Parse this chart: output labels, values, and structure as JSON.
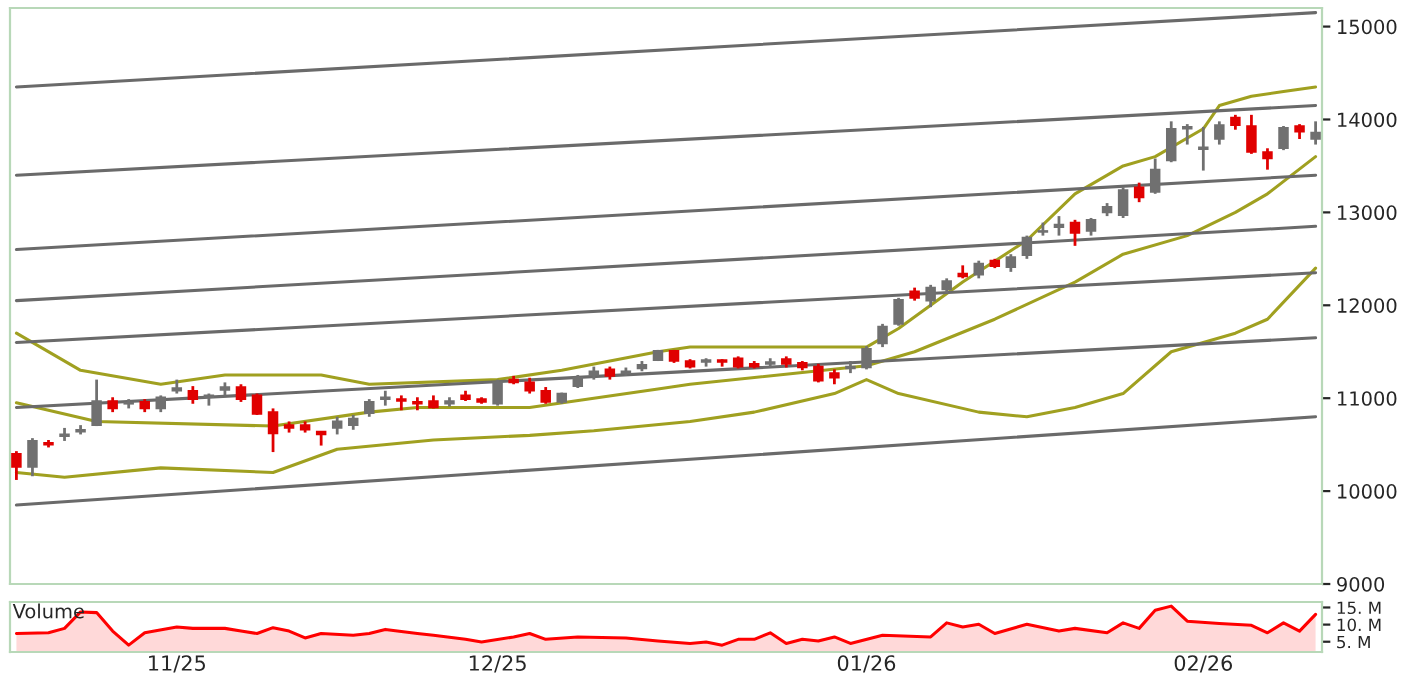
{
  "chart_data": [
    {
      "type": "candlestick",
      "categories": [
        null,
        null,
        null,
        null,
        null,
        null,
        null,
        null,
        null,
        null,
        null,
        null,
        null,
        null,
        null,
        null,
        null,
        null,
        null,
        null,
        null,
        null,
        null,
        null,
        null,
        null,
        null,
        null,
        null,
        null,
        null,
        null,
        null,
        null,
        null,
        null,
        null,
        null,
        null,
        null,
        null,
        null,
        null,
        null,
        null,
        null,
        null,
        null,
        null,
        null,
        null,
        null,
        null,
        null,
        null,
        null,
        null,
        null,
        null,
        null,
        null,
        null,
        null,
        null,
        null,
        null,
        null,
        null,
        null,
        null,
        null,
        null,
        null,
        null,
        null,
        null,
        null,
        null,
        null,
        null,
        null,
        null
      ],
      "ohlc": [
        [
          10400,
          10430,
          10120,
          10260
        ],
        [
          10260,
          10570,
          10160,
          10540
        ],
        [
          10520,
          10550,
          10470,
          10500
        ],
        [
          10590,
          10680,
          10540,
          10610
        ],
        [
          10640,
          10710,
          10610,
          10660
        ],
        [
          10710,
          11200,
          10700,
          10970
        ],
        [
          10970,
          11010,
          10850,
          10890
        ],
        [
          10940,
          10990,
          10890,
          10950
        ],
        [
          10960,
          10990,
          10850,
          10890
        ],
        [
          10890,
          11030,
          10850,
          11010
        ],
        [
          11080,
          11200,
          11050,
          11110
        ],
        [
          11080,
          11130,
          10940,
          10990
        ],
        [
          11010,
          11050,
          10920,
          11030
        ],
        [
          11090,
          11170,
          11030,
          11120
        ],
        [
          11120,
          11150,
          10960,
          10990
        ],
        [
          11030,
          11050,
          10820,
          10830
        ],
        [
          10850,
          10890,
          10420,
          10620
        ],
        [
          10710,
          10750,
          10630,
          10680
        ],
        [
          10710,
          10750,
          10630,
          10660
        ],
        [
          10640,
          10640,
          10490,
          10610
        ],
        [
          10680,
          10800,
          10610,
          10750
        ],
        [
          10710,
          10820,
          10660,
          10780
        ],
        [
          10840,
          10990,
          10800,
          10960
        ],
        [
          10990,
          11080,
          10920,
          11010
        ],
        [
          10990,
          11030,
          10870,
          10970
        ],
        [
          10960,
          11010,
          10870,
          10940
        ],
        [
          10970,
          11030,
          10890,
          10900
        ],
        [
          10940,
          11010,
          10910,
          10970
        ],
        [
          11030,
          11080,
          10970,
          10990
        ],
        [
          10990,
          11010,
          10940,
          10960
        ],
        [
          10940,
          11200,
          10920,
          11170
        ],
        [
          11200,
          11240,
          11150,
          11170
        ],
        [
          11170,
          11220,
          11050,
          11080
        ],
        [
          11080,
          11120,
          10940,
          10960
        ],
        [
          10960,
          11060,
          10940,
          11050
        ],
        [
          11130,
          11250,
          11110,
          11220
        ],
        [
          11250,
          11340,
          11200,
          11290
        ],
        [
          11310,
          11340,
          11200,
          11240
        ],
        [
          11270,
          11330,
          11240,
          11290
        ],
        [
          11320,
          11400,
          11290,
          11360
        ],
        [
          11410,
          11520,
          11400,
          11510
        ],
        [
          11510,
          11520,
          11380,
          11400
        ],
        [
          11400,
          11420,
          11320,
          11340
        ],
        [
          11390,
          11430,
          11340,
          11410
        ],
        [
          11410,
          11420,
          11340,
          11390
        ],
        [
          11430,
          11450,
          11320,
          11340
        ],
        [
          11370,
          11400,
          11320,
          11340
        ],
        [
          11370,
          11430,
          11340,
          11390
        ],
        [
          11420,
          11450,
          11330,
          11370
        ],
        [
          11380,
          11400,
          11300,
          11330
        ],
        [
          11340,
          11370,
          11170,
          11190
        ],
        [
          11270,
          11310,
          11150,
          11220
        ],
        [
          11320,
          11400,
          11270,
          11340
        ],
        [
          11330,
          11560,
          11310,
          11530
        ],
        [
          11590,
          11800,
          11550,
          11770
        ],
        [
          11800,
          12080,
          11780,
          12060
        ],
        [
          12150,
          12190,
          12050,
          12080
        ],
        [
          12050,
          12220,
          11980,
          12190
        ],
        [
          12170,
          12290,
          12130,
          12260
        ],
        [
          12340,
          12430,
          12290,
          12310
        ],
        [
          12330,
          12480,
          12290,
          12450
        ],
        [
          12480,
          12500,
          12400,
          12420
        ],
        [
          12410,
          12550,
          12360,
          12520
        ],
        [
          12540,
          12750,
          12500,
          12730
        ],
        [
          12790,
          12890,
          12750,
          12800
        ],
        [
          12840,
          12960,
          12750,
          12870
        ],
        [
          12890,
          12920,
          12640,
          12780
        ],
        [
          12800,
          12940,
          12750,
          12920
        ],
        [
          13000,
          13100,
          12960,
          13060
        ],
        [
          12970,
          13270,
          12940,
          13240
        ],
        [
          13270,
          13320,
          13110,
          13160
        ],
        [
          13220,
          13580,
          13200,
          13460
        ],
        [
          13560,
          13980,
          13540,
          13900
        ],
        [
          13900,
          13950,
          13730,
          13920
        ],
        [
          13680,
          13920,
          13450,
          13700
        ],
        [
          13790,
          13980,
          13730,
          13940
        ],
        [
          14020,
          14050,
          13890,
          13940
        ],
        [
          13930,
          14050,
          13630,
          13650
        ],
        [
          13650,
          13690,
          13460,
          13580
        ],
        [
          13690,
          13930,
          13670,
          13910
        ],
        [
          13930,
          13950,
          13790,
          13870
        ],
        [
          13790,
          13980,
          13730,
          13860
        ]
      ],
      "colors": [
        "#e00000",
        "#707070",
        "#e00000",
        "#707070",
        "#707070",
        "#707070",
        "#e00000",
        "#707070",
        "#e00000",
        "#707070",
        "#707070",
        "#e00000",
        "#707070",
        "#707070",
        "#e00000",
        "#e00000",
        "#e00000",
        "#e00000",
        "#e00000",
        "#e00000",
        "#707070",
        "#707070",
        "#707070",
        "#707070",
        "#e00000",
        "#e00000",
        "#e00000",
        "#707070",
        "#e00000",
        "#e00000",
        "#707070",
        "#e00000",
        "#e00000",
        "#e00000",
        "#707070",
        "#707070",
        "#707070",
        "#e00000",
        "#707070",
        "#707070",
        "#707070",
        "#e00000",
        "#e00000",
        "#707070",
        "#e00000",
        "#e00000",
        "#e00000",
        "#707070",
        "#e00000",
        "#e00000",
        "#e00000",
        "#e00000",
        "#707070",
        "#707070",
        "#707070",
        "#707070",
        "#e00000",
        "#707070",
        "#707070",
        "#e00000",
        "#707070",
        "#e00000",
        "#707070",
        "#707070",
        "#707070",
        "#707070",
        "#e00000",
        "#707070",
        "#707070",
        "#707070",
        "#e00000",
        "#707070",
        "#707070",
        "#707070",
        "#707070",
        "#707070",
        "#e00000",
        "#e00000",
        "#e00000",
        "#707070",
        "#e00000",
        "#707070"
      ],
      "series": [
        {
          "type": "line",
          "color": "#a0a020",
          "values": [
            11700,
            null,
            null,
            null,
            11300,
            null,
            null,
            null,
            null,
            11150,
            null,
            null,
            null,
            11250,
            null,
            null,
            null,
            null,
            null,
            11250,
            null,
            null,
            11150,
            null,
            null,
            null,
            null,
            null,
            null,
            null,
            11200,
            null,
            null,
            null,
            11300,
            null,
            null,
            null,
            null,
            null,
            11500,
            null,
            11550,
            null,
            null,
            null,
            11550,
            null,
            null,
            null,
            null,
            null,
            null,
            11550,
            null,
            11750,
            null,
            null,
            null,
            12250,
            null,
            null,
            null,
            12700,
            null,
            null,
            13200,
            null,
            null,
            13500,
            null,
            13600,
            null,
            null,
            13900,
            14150,
            null,
            14250,
            null,
            14300,
            null,
            14350
          ]
        },
        {
          "type": "line",
          "color": "#a0a020",
          "values": [
            10950,
            null,
            null,
            null,
            null,
            10750,
            null,
            null,
            null,
            null,
            null,
            null,
            null,
            null,
            null,
            null,
            10700,
            null,
            null,
            null,
            null,
            null,
            10850,
            null,
            null,
            10900,
            null,
            null,
            null,
            null,
            null,
            null,
            10900,
            null,
            null,
            null,
            null,
            null,
            null,
            null,
            11100,
            null,
            11150,
            null,
            null,
            null,
            null,
            null,
            null,
            null,
            null,
            null,
            null,
            11350,
            null,
            null,
            11500,
            null,
            null,
            null,
            null,
            11850,
            null,
            null,
            null,
            null,
            12250,
            null,
            null,
            12550,
            null,
            null,
            null,
            12750,
            null,
            null,
            13000,
            null,
            13200,
            null,
            null,
            13600
          ]
        },
        {
          "type": "line",
          "color": "#a0a020",
          "values": [
            10200,
            null,
            null,
            10150,
            null,
            null,
            null,
            null,
            null,
            10250,
            null,
            null,
            null,
            null,
            null,
            null,
            10200,
            null,
            null,
            null,
            10450,
            null,
            null,
            null,
            null,
            null,
            10550,
            null,
            null,
            null,
            null,
            null,
            10600,
            null,
            null,
            null,
            10650,
            null,
            null,
            null,
            null,
            null,
            10750,
            null,
            null,
            null,
            10850,
            null,
            null,
            null,
            null,
            11050,
            null,
            11200,
            null,
            11050,
            null,
            null,
            null,
            null,
            10850,
            null,
            null,
            10800,
            null,
            null,
            10900,
            null,
            null,
            11050,
            null,
            null,
            11500,
            null,
            null,
            null,
            11700,
            null,
            11850,
            null,
            null,
            12400
          ]
        },
        {
          "type": "line",
          "color": "#6a6a6a",
          "values": [
            14350,
            null,
            null,
            null,
            null,
            null,
            null,
            null,
            null,
            null,
            null,
            null,
            null,
            null,
            null,
            null,
            null,
            null,
            null,
            null,
            null,
            null,
            null,
            null,
            null,
            null,
            null,
            null,
            null,
            null,
            null,
            null,
            null,
            null,
            null,
            null,
            null,
            null,
            null,
            null,
            null,
            null,
            null,
            null,
            null,
            null,
            null,
            null,
            null,
            null,
            null,
            null,
            null,
            null,
            null,
            null,
            null,
            null,
            null,
            null,
            null,
            null,
            null,
            null,
            null,
            null,
            null,
            null,
            null,
            null,
            null,
            null,
            null,
            null,
            null,
            null,
            null,
            null,
            null,
            null,
            null,
            15150
          ]
        },
        {
          "type": "line",
          "color": "#6a6a6a",
          "values": [
            13400,
            null,
            null,
            null,
            null,
            null,
            null,
            null,
            null,
            null,
            null,
            null,
            null,
            null,
            null,
            null,
            null,
            null,
            null,
            null,
            null,
            null,
            null,
            null,
            null,
            null,
            null,
            null,
            null,
            null,
            null,
            null,
            null,
            null,
            null,
            null,
            null,
            null,
            null,
            null,
            null,
            null,
            null,
            null,
            null,
            null,
            null,
            null,
            null,
            null,
            null,
            null,
            null,
            null,
            null,
            null,
            null,
            null,
            null,
            null,
            null,
            null,
            null,
            null,
            null,
            null,
            null,
            null,
            null,
            null,
            null,
            null,
            null,
            null,
            null,
            null,
            null,
            null,
            null,
            null,
            null,
            14150
          ]
        },
        {
          "type": "line",
          "color": "#6a6a6a",
          "values": [
            12600,
            null,
            null,
            null,
            null,
            null,
            null,
            null,
            null,
            null,
            null,
            null,
            null,
            null,
            null,
            null,
            null,
            null,
            null,
            null,
            null,
            null,
            null,
            null,
            null,
            null,
            null,
            null,
            null,
            null,
            null,
            null,
            null,
            null,
            null,
            null,
            null,
            null,
            null,
            null,
            null,
            null,
            null,
            null,
            null,
            null,
            null,
            null,
            null,
            null,
            null,
            null,
            null,
            null,
            null,
            null,
            null,
            null,
            null,
            null,
            null,
            null,
            null,
            null,
            null,
            null,
            null,
            null,
            null,
            null,
            null,
            null,
            null,
            null,
            null,
            null,
            null,
            null,
            null,
            null,
            null,
            13400
          ]
        },
        {
          "type": "line",
          "color": "#6a6a6a",
          "values": [
            12050,
            null,
            null,
            null,
            null,
            null,
            null,
            null,
            null,
            null,
            null,
            null,
            null,
            null,
            null,
            null,
            null,
            null,
            null,
            null,
            null,
            null,
            null,
            null,
            null,
            null,
            null,
            null,
            null,
            null,
            null,
            null,
            null,
            null,
            null,
            null,
            null,
            null,
            null,
            null,
            null,
            null,
            null,
            null,
            null,
            null,
            null,
            null,
            null,
            null,
            null,
            null,
            null,
            null,
            null,
            null,
            null,
            null,
            null,
            null,
            null,
            null,
            null,
            null,
            null,
            null,
            null,
            null,
            null,
            null,
            null,
            null,
            null,
            null,
            null,
            null,
            null,
            null,
            null,
            null,
            null,
            12850
          ]
        },
        {
          "type": "line",
          "color": "#6a6a6a",
          "values": [
            11600,
            null,
            null,
            null,
            null,
            null,
            null,
            null,
            null,
            null,
            null,
            null,
            null,
            null,
            null,
            null,
            null,
            null,
            null,
            null,
            null,
            null,
            null,
            null,
            null,
            null,
            null,
            null,
            null,
            null,
            null,
            null,
            null,
            null,
            null,
            null,
            null,
            null,
            null,
            null,
            null,
            null,
            null,
            null,
            null,
            null,
            null,
            null,
            null,
            null,
            null,
            null,
            null,
            null,
            null,
            null,
            null,
            null,
            null,
            null,
            null,
            null,
            null,
            null,
            null,
            null,
            null,
            null,
            null,
            null,
            null,
            null,
            null,
            null,
            null,
            null,
            null,
            null,
            null,
            null,
            null,
            12350
          ]
        },
        {
          "type": "line",
          "color": "#6a6a6a",
          "values": [
            10900,
            null,
            null,
            null,
            null,
            null,
            null,
            null,
            null,
            null,
            null,
            null,
            null,
            null,
            null,
            null,
            null,
            null,
            null,
            null,
            null,
            null,
            null,
            null,
            null,
            null,
            null,
            null,
            null,
            null,
            null,
            null,
            null,
            null,
            null,
            null,
            null,
            null,
            null,
            null,
            null,
            null,
            null,
            null,
            null,
            null,
            null,
            null,
            null,
            null,
            null,
            null,
            null,
            null,
            null,
            null,
            null,
            null,
            null,
            null,
            null,
            null,
            null,
            null,
            null,
            null,
            null,
            null,
            null,
            null,
            null,
            null,
            null,
            null,
            null,
            null,
            null,
            null,
            null,
            null,
            null,
            11650
          ]
        },
        {
          "type": "line",
          "color": "#6a6a6a",
          "values": [
            9850,
            null,
            null,
            null,
            null,
            null,
            null,
            null,
            null,
            null,
            null,
            null,
            null,
            null,
            null,
            null,
            null,
            null,
            null,
            null,
            null,
            null,
            null,
            null,
            null,
            null,
            null,
            null,
            null,
            null,
            null,
            null,
            null,
            null,
            null,
            null,
            null,
            null,
            null,
            null,
            null,
            null,
            null,
            null,
            null,
            null,
            null,
            null,
            null,
            null,
            null,
            null,
            null,
            null,
            null,
            null,
            null,
            null,
            null,
            null,
            null,
            null,
            null,
            null,
            null,
            null,
            null,
            null,
            null,
            null,
            null,
            null,
            null,
            null,
            null,
            null,
            null,
            null,
            null,
            null,
            null,
            10800
          ]
        }
      ],
      "ylim": [
        9000,
        15200
      ],
      "yticks": [
        9000,
        10000,
        11000,
        12000,
        13000,
        14000,
        15000
      ],
      "tick_labels": "y"
    },
    {
      "type": "area",
      "title": "Volume",
      "categories": [
        null,
        null,
        null,
        null,
        null,
        null,
        null,
        null,
        null,
        null,
        "11/25",
        null,
        null,
        null,
        null,
        null,
        null,
        null,
        null,
        null,
        null,
        null,
        null,
        null,
        null,
        null,
        null,
        null,
        null,
        null,
        "12/25",
        null,
        null,
        null,
        null,
        null,
        null,
        null,
        null,
        null,
        null,
        null,
        null,
        null,
        null,
        null,
        null,
        null,
        null,
        null,
        null,
        null,
        null,
        "01/26",
        null,
        null,
        null,
        null,
        null,
        null,
        null,
        null,
        null,
        null,
        null,
        null,
        null,
        null,
        null,
        null,
        null,
        null,
        null,
        null,
        "02/26",
        null,
        null,
        null,
        null,
        null,
        null,
        null
      ],
      "series": [
        {
          "color": "#ff0000",
          "values": [
            7.4,
            null,
            7.6,
            8.9,
            13.7,
            13.5,
            8.1,
            4.0,
            7.6,
            null,
            9.3,
            8.9,
            null,
            8.9,
            8.1,
            7.4,
            9.1,
            8.1,
            6.1,
            7.4,
            null,
            6.9,
            7.4,
            8.6,
            null,
            7.4,
            6.9,
            null,
            5.7,
            4.9,
            null,
            6.4,
            7.4,
            5.7,
            null,
            6.4,
            null,
            null,
            6.1,
            null,
            5.2,
            null,
            4.5,
            4.9,
            4.0,
            5.7,
            5.7,
            7.6,
            4.5,
            5.7,
            5.2,
            6.4,
            4.5,
            null,
            6.9,
            null,
            null,
            6.4,
            10.5,
            9.3,
            10.1,
            7.4,
            null,
            10.1,
            null,
            8.1,
            8.9,
            null,
            7.6,
            10.5,
            8.9,
            14.2,
            15.4,
            11.0,
            null,
            10.3,
            null,
            9.8,
            7.6,
            10.5,
            8.1,
            13.0
          ]
        }
      ],
      "ylim": [
        2.0,
        16.6
      ],
      "yticks": [
        {
          "value": 5,
          "label": "5. M"
        },
        {
          "value": 10,
          "label": "10. M"
        },
        {
          "value": 15,
          "label": "15. M"
        }
      ]
    }
  ]
}
